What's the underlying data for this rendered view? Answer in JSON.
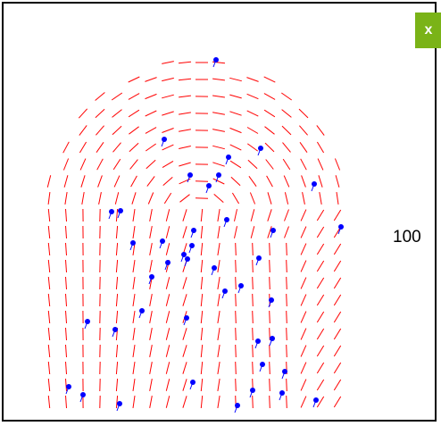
{
  "close_button": {
    "label": "x",
    "color": "#7ab317"
  },
  "score": {
    "value": "100"
  },
  "colors": {
    "orientation_lines": "#ff0000",
    "minutiae": "#0000ff"
  },
  "minutiae_count": 42
}
